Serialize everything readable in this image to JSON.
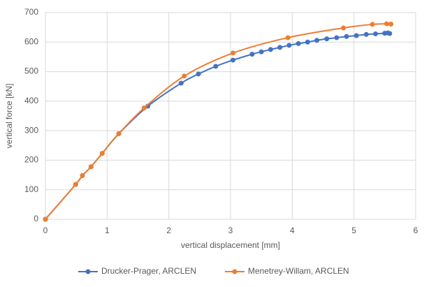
{
  "chart_data": {
    "type": "line",
    "x_label": "vertical displacement [mm]",
    "y_label": "vertical force [kN]",
    "xlim": [
      0,
      6
    ],
    "xticks": [
      0,
      1,
      2,
      3,
      4,
      5,
      6
    ],
    "ylim": [
      0,
      700
    ],
    "yticks": [
      0,
      100,
      200,
      300,
      400,
      500,
      600,
      700
    ],
    "grid": true,
    "legend": "bottom",
    "series": [
      {
        "name": "Drucker-Prager, ARCLEN",
        "color": "#4472c4",
        "x": [
          0,
          0.49,
          0.6,
          0.74,
          0.92,
          1.19,
          1.66,
          2.2,
          2.48,
          2.76,
          3.04,
          3.35,
          3.5,
          3.65,
          3.8,
          3.95,
          4.1,
          4.25,
          4.4,
          4.56,
          4.72,
          4.88,
          5.04,
          5.2,
          5.35,
          5.5,
          5.55,
          5.58
        ],
        "values": [
          0,
          118,
          148,
          178,
          223,
          290,
          383,
          461,
          492,
          518,
          539,
          559,
          567,
          575,
          582,
          589,
          595,
          600,
          606,
          611,
          615,
          619,
          622,
          626,
          628,
          630,
          631,
          629
        ]
      },
      {
        "name": "Menetrey-Willam, ARCLEN",
        "color": "#ed7d31",
        "x": [
          0,
          0.49,
          0.6,
          0.74,
          0.92,
          1.19,
          1.6,
          2.25,
          3.04,
          3.93,
          4.83,
          5.3,
          5.53,
          5.6
        ],
        "values": [
          0,
          118,
          148,
          178,
          223,
          290,
          377,
          485,
          563,
          615,
          648,
          660,
          662,
          661
        ]
      }
    ]
  }
}
